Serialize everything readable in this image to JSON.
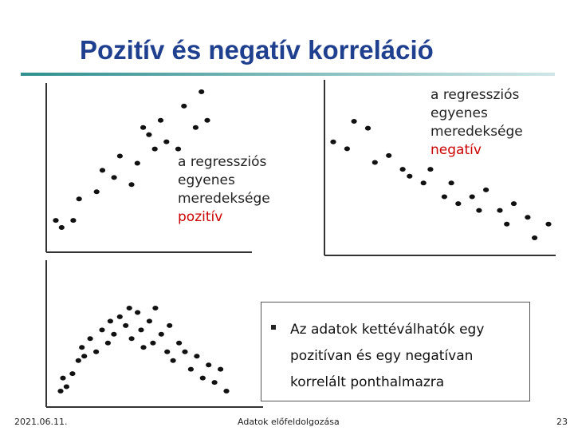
{
  "title": "Pozitív és negatív korreláció",
  "colors": {
    "title": "#1f3f8f",
    "title_rule_start": "#2f8f8f",
    "title_rule_end": "#cfe6e6",
    "point": "#111111",
    "axis": "#333333",
    "highlight": "#cc0000"
  },
  "positive_label": {
    "line1": "a regressziós",
    "line2": "egyenes",
    "line3": "meredeksége",
    "highlight": "pozitív"
  },
  "negative_label": {
    "line1": "a regressziós",
    "line2": "egyenes",
    "line3": "meredeksége",
    "highlight": "negatív"
  },
  "callout": {
    "bullet_icon": "square-bullet-icon",
    "text": "Az adatok kettéválhatók egy pozitívan és egy negatívan korrelált ponthalmazra"
  },
  "footer": {
    "date": "2021.06.11.",
    "center": "Adatok előfeldolgozása",
    "page": "23"
  },
  "chart_data": [
    {
      "type": "scatter",
      "trend": "positive",
      "points": [
        [
          1,
          1.5
        ],
        [
          1.5,
          1
        ],
        [
          2.5,
          1.5
        ],
        [
          3,
          3
        ],
        [
          4.5,
          3.5
        ],
        [
          5,
          5
        ],
        [
          6,
          4.5
        ],
        [
          6.5,
          6
        ],
        [
          7.5,
          4
        ],
        [
          8,
          5.5
        ],
        [
          8.5,
          8
        ],
        [
          9,
          7.5
        ],
        [
          9.5,
          6.5
        ],
        [
          10,
          8.5
        ],
        [
          10.5,
          7
        ],
        [
          11.5,
          6.5
        ],
        [
          12,
          9.5
        ],
        [
          13,
          8
        ],
        [
          13.5,
          10.5
        ],
        [
          14,
          8.5
        ]
      ]
    },
    {
      "type": "scatter",
      "trend": "negative",
      "points": [
        [
          1,
          8
        ],
        [
          2,
          7.5
        ],
        [
          2.5,
          9.5
        ],
        [
          3.5,
          9
        ],
        [
          4,
          6.5
        ],
        [
          5,
          7
        ],
        [
          6,
          6
        ],
        [
          6.5,
          5.5
        ],
        [
          7.5,
          5
        ],
        [
          8,
          6
        ],
        [
          9,
          4
        ],
        [
          9.5,
          5
        ],
        [
          10,
          3.5
        ],
        [
          11,
          4
        ],
        [
          11.5,
          3
        ],
        [
          12,
          4.5
        ],
        [
          13,
          3
        ],
        [
          13.5,
          2
        ],
        [
          14,
          3.5
        ],
        [
          15,
          2.5
        ],
        [
          15.5,
          1
        ],
        [
          16.5,
          2
        ]
      ]
    },
    {
      "type": "scatter",
      "trend": "inverted-v (positive then negative)",
      "points": [
        [
          1,
          1.5
        ],
        [
          1.2,
          3
        ],
        [
          1.5,
          2
        ],
        [
          2,
          3.5
        ],
        [
          2.5,
          5
        ],
        [
          2.8,
          6.5
        ],
        [
          3,
          5.5
        ],
        [
          3.5,
          7.5
        ],
        [
          4,
          6
        ],
        [
          4.5,
          8.5
        ],
        [
          5,
          7
        ],
        [
          5.2,
          9.5
        ],
        [
          5.5,
          8
        ],
        [
          6,
          10
        ],
        [
          6.5,
          9
        ],
        [
          6.8,
          11
        ],
        [
          7,
          7.5
        ],
        [
          7.5,
          10.5
        ],
        [
          7.8,
          8.5
        ],
        [
          8,
          6.5
        ],
        [
          8.5,
          9.5
        ],
        [
          8.8,
          7
        ],
        [
          9,
          11
        ],
        [
          9.5,
          8
        ],
        [
          10,
          6
        ],
        [
          10.2,
          9
        ],
        [
          10.5,
          5
        ],
        [
          11,
          7
        ],
        [
          11.5,
          6
        ],
        [
          12,
          4
        ],
        [
          12.5,
          5.5
        ],
        [
          13,
          3
        ],
        [
          13.5,
          4.5
        ],
        [
          14,
          2.5
        ],
        [
          14.5,
          4
        ],
        [
          15,
          1.5
        ]
      ]
    }
  ]
}
